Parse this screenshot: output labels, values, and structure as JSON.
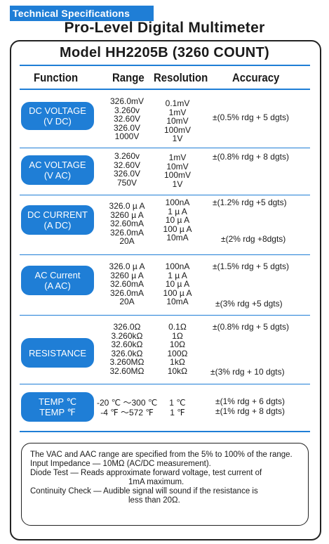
{
  "tag": "Technical Specifications",
  "headline": "Pro-Level Digital Multimeter",
  "model": "Model HH2205B (3260 COUNT)",
  "columns": {
    "function": "Function",
    "range": "Range",
    "resolution": "Resolution",
    "accuracy": "Accuracy"
  },
  "rows": [
    {
      "function": [
        "DC VOLTAGE",
        "(V DC)"
      ],
      "ranges": [
        "326.0mV",
        "3.260v",
        "32.60V",
        "326.0V",
        "1000V"
      ],
      "resolutions": [
        "0.1mV",
        "1mV",
        "10mV",
        "100mV",
        "1V"
      ],
      "accuracy": [
        "±(0.5% rdg + 5 dgts)"
      ]
    },
    {
      "function": [
        "AC VOLTAGE",
        "(V AC)"
      ],
      "ranges": [
        "3.260v",
        "32.60V",
        "326.0V",
        "750V"
      ],
      "resolutions": [
        "1mV",
        "10mV",
        "100mV",
        "1V"
      ],
      "accuracy": [
        "±(0.8% rdg + 8 dgts)"
      ]
    },
    {
      "function": [
        "DC CURRENT",
        "(A DC)"
      ],
      "ranges": [
        "326.0 µ A",
        "3260 µ A",
        "32.60mA",
        "326.0mA",
        "20A"
      ],
      "resolutions": [
        "100nA",
        "1 µ A",
        "10 µ A",
        "100 µ A",
        "10mA"
      ],
      "accuracy": [
        "±(1.2% rdg +5 dgts)",
        "±(2% rdg +8dgts)"
      ]
    },
    {
      "function": [
        "AC Current",
        "(A AC)"
      ],
      "ranges": [
        "326.0 µ A",
        "3260 µ A",
        "32.60mA",
        "326.0mA",
        "20A"
      ],
      "resolutions": [
        "100nA",
        "1 µ A",
        "10 µ A",
        "100 µ A",
        "10mA"
      ],
      "accuracy": [
        "±(1.5% rdg + 5 dgts)",
        "±(3% rdg +5 dgts)"
      ]
    },
    {
      "function": [
        "RESISTANCE"
      ],
      "ranges": [
        "326.0Ω",
        "3.260kΩ",
        "32.60kΩ",
        "326.0kΩ",
        "3.260MΩ",
        "32.60MΩ"
      ],
      "resolutions": [
        "0.1Ω",
        "1Ω",
        "10Ω",
        "100Ω",
        "1kΩ",
        "10kΩ"
      ],
      "accuracy": [
        "±(0.8% rdg + 5 dgts)",
        "±(3% rdg + 10 dgts)"
      ]
    },
    {
      "function": [
        "TEMP ℃",
        "TEMP ℉"
      ],
      "ranges": [
        "-20 ℃ ～300 ℃",
        "-4 ℉ ～572 ℉"
      ],
      "resolutions": [
        "1 ℃",
        "1 ℉"
      ],
      "accuracy": [
        "±(1% rdg + 6 dgts)",
        "±(1% rdg + 8 dgts)"
      ]
    }
  ],
  "notes": {
    "vac_aac": "The VAC and AAC range are specified from the 5% to 100% of the range.",
    "impedance": "Input Impedance — 10MΩ (AC/DC measurement).",
    "diode_1": "Diode Test —  Reads approximate forward voltage, test current of",
    "diode_2": "1mA maximum.",
    "continuity_1": "Continuity Check —  Audible signal will sound if the resistance is",
    "continuity_2": "less than 20Ω."
  }
}
